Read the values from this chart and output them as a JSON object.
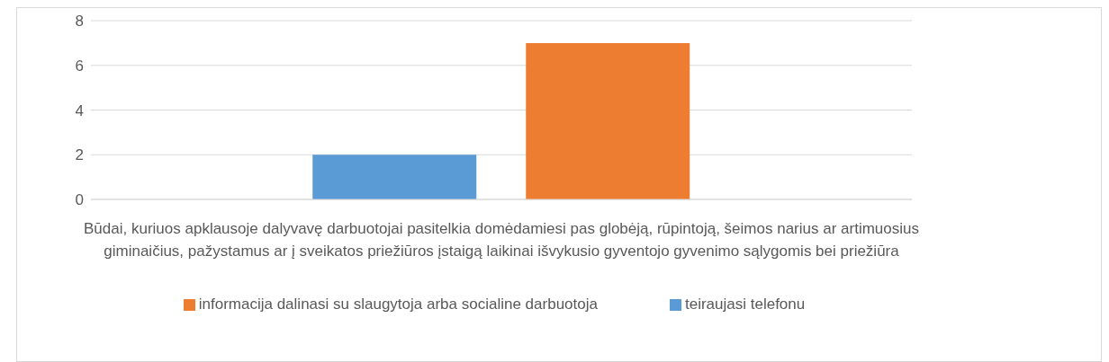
{
  "chart_data": {
    "type": "bar",
    "categories": [
      "Būdai, kuriuos apklausoje dalyvavę darbuotojai pasitelkia domėdamiesi pas globėją, rūpintoją, šeimos narius ar artimuosius giminaičius, pažystamus ar į sveikatos priežiūros įstaigą laikinai išvykusio gyventojo gyvenimo sąlygomis bei priežiūra"
    ],
    "series": [
      {
        "name": "teiraujasi telefonu",
        "color": "#5b9bd5",
        "values": [
          2
        ]
      },
      {
        "name": "informacija dalinasi su slaugytoja arba socialine darbuotoja",
        "color": "#ed7d31",
        "values": [
          7
        ]
      }
    ],
    "ylim": [
      0,
      8
    ],
    "yticks": [
      0,
      2,
      4,
      6,
      8
    ],
    "grid": "y",
    "legend": "bottom"
  }
}
